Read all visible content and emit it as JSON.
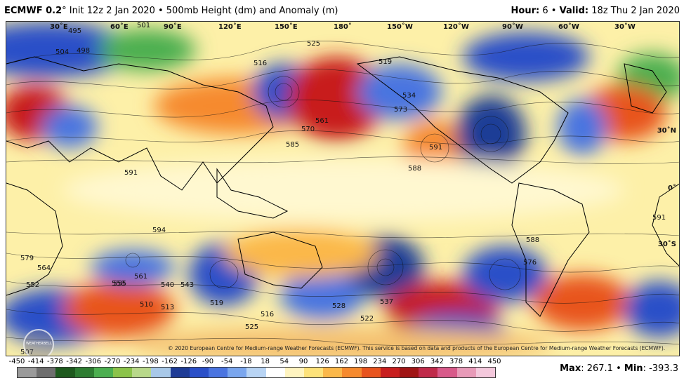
{
  "header": {
    "model": "ECMWF 0.2",
    "degree": "°",
    "init": "Init 12z 2 Jan 2020 • 500mb Height (dm) and Anomaly (m)",
    "hour_label": "Hour:",
    "hour_value": "6",
    "sep": "•",
    "valid_label": "Valid:",
    "valid_value": "18z Thu 2 Jan 2020"
  },
  "lon_labels": [
    "30˚E",
    "60˚E",
    "90˚E",
    "120˚E",
    "150˚E",
    "180˚",
    "150˚W",
    "120˚W",
    "90˚W",
    "60˚W",
    "30˚W"
  ],
  "lat_labels": [
    "30˚N",
    "0˚",
    "30˚S"
  ],
  "contour_labels": [
    "495",
    "501",
    "504",
    "498",
    "525",
    "519",
    "516",
    "534",
    "561",
    "570",
    "585",
    "591",
    "573",
    "594",
    "591",
    "588",
    "558",
    "552",
    "564",
    "579",
    "561",
    "540",
    "543",
    "510",
    "513",
    "519",
    "516",
    "525",
    "528",
    "522",
    "507",
    "555",
    "537",
    "576",
    "588",
    "591"
  ],
  "copyright": "© 2020 European Centre for Medium-range Weather Forecasts (ECMWF). This service is based on data and products of the European Centre for Medium-range Weather Forecasts (ECMWF).",
  "logo_text": "WEATHERBELL",
  "scale": {
    "ticks": [
      "-450",
      "-414",
      "-378",
      "-342",
      "-306",
      "-270",
      "-234",
      "-198",
      "-162",
      "-126",
      "-90",
      "-54",
      "-18",
      "18",
      "54",
      "90",
      "126",
      "162",
      "198",
      "234",
      "270",
      "306",
      "342",
      "378",
      "414",
      "450"
    ],
    "colors": [
      "#9a9a9a",
      "#6e6e6e",
      "#1e5a1e",
      "#2e7d32",
      "#4caf50",
      "#8bc34a",
      "#b8d88a",
      "#a8c8e8",
      "#1e3c96",
      "#2a4fc8",
      "#4a74e0",
      "#7aa6ee",
      "#b8d4f4",
      "#ffffff",
      "#fff4c0",
      "#fde27a",
      "#fbb84a",
      "#f68a2e",
      "#e8541e",
      "#c81e1e",
      "#a01414",
      "#c02a4a",
      "#d85a8a",
      "#e89ab8",
      "#f4c8dc"
    ]
  },
  "stats": {
    "max_label": "Max",
    "max_value": "267.1",
    "min_label": "Min",
    "min_value": "-393.3",
    "sep": "•"
  }
}
